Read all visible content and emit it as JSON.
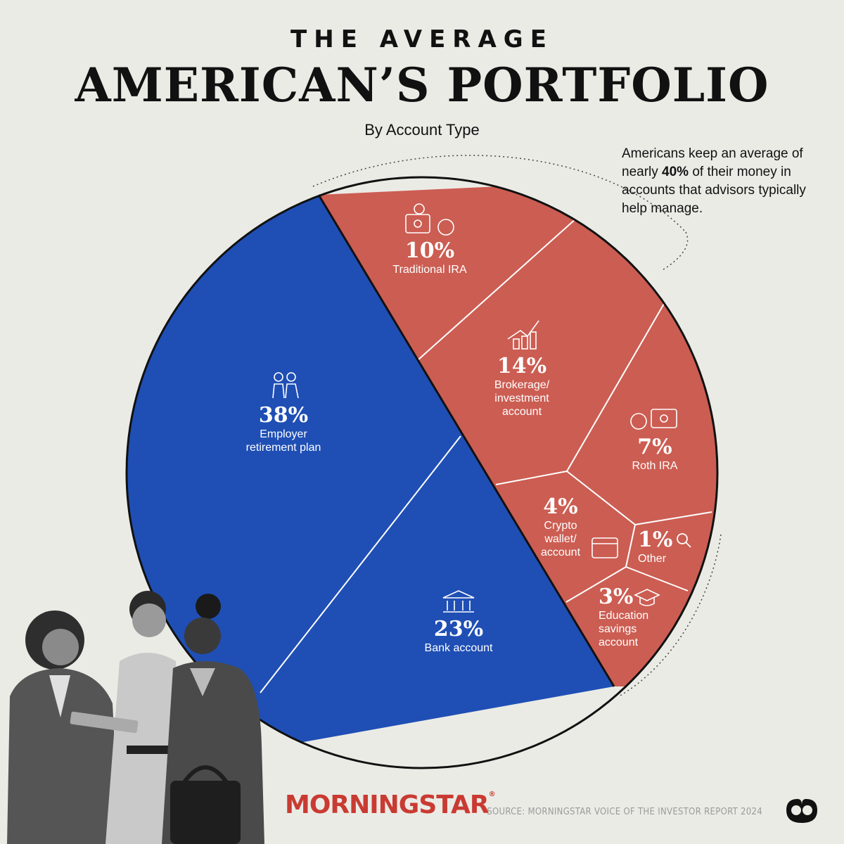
{
  "header": {
    "kicker": "THE AVERAGE",
    "title": "AMERICAN’S PORTFOLIO",
    "subtitle": "By Account Type"
  },
  "callout": {
    "text_before": "Americans keep an average of nearly ",
    "highlight": "40%",
    "text_after": " of their money in accounts that advisors typically help manage."
  },
  "colors": {
    "blue": "#1f4fb5",
    "red": "#cc5d52",
    "background": "#ebebe6"
  },
  "chart_data": {
    "type": "pie",
    "title": "AMERICAN’S PORTFOLIO",
    "subtitle": "By Account Type",
    "slices": [
      {
        "label": "Traditional IRA",
        "value": 10,
        "display": "10%",
        "group": "advisor",
        "icon": "safe-tax-icon"
      },
      {
        "label": "Brokerage/ investment account",
        "value": 14,
        "display": "14%",
        "group": "advisor",
        "icon": "growth-chart-icon"
      },
      {
        "label": "Roth IRA",
        "value": 7,
        "display": "7%",
        "group": "advisor",
        "icon": "tax-safe-icon"
      },
      {
        "label": "Other",
        "value": 1,
        "display": "1%",
        "group": "advisor",
        "icon": "magnifier-icon"
      },
      {
        "label": "Education savings account",
        "value": 3,
        "display": "3%",
        "group": "advisor",
        "icon": "graduation-cap-icon"
      },
      {
        "label": "Crypto wallet/ account",
        "value": 4,
        "display": "4%",
        "group": "advisor",
        "icon": "wallet-icon"
      },
      {
        "label": "Bank account",
        "value": 23,
        "display": "23%",
        "group": "self",
        "icon": "bank-icon"
      },
      {
        "label": "Employer retirement plan",
        "value": 38,
        "display": "38%",
        "group": "self",
        "icon": "couple-icon"
      }
    ]
  },
  "labels": {
    "trad_ira": {
      "pct": "10%",
      "name": "Traditional IRA"
    },
    "brokerage": {
      "pct": "14%",
      "line1": "Brokerage/",
      "line2": "investment",
      "line3": "account"
    },
    "roth": {
      "pct": "7%",
      "name": "Roth IRA"
    },
    "crypto": {
      "pct": "4%",
      "line1": "Crypto",
      "line2": "wallet/",
      "line3": "account"
    },
    "other": {
      "pct": "1%",
      "name": "Other"
    },
    "education": {
      "pct": "3%",
      "line1": "Education",
      "line2": "savings",
      "line3": "account"
    },
    "bank": {
      "pct": "23%",
      "name": "Bank account"
    },
    "employer": {
      "pct": "38%",
      "line1": "Employer",
      "line2": "retirement plan"
    }
  },
  "footer": {
    "brand": "MORNINGSTAR",
    "source": "SOURCE: MORNINGSTAR VOICE OF THE INVESTOR REPORT 2024"
  }
}
